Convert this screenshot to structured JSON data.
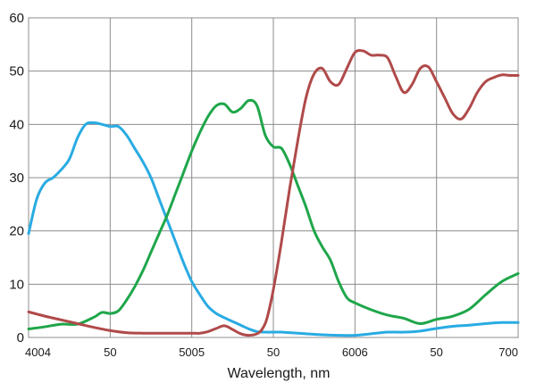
{
  "chart_data": {
    "type": "line",
    "title": "",
    "xlabel": "Wavelength, nm",
    "ylabel": "",
    "xlim": [
      400,
      700
    ],
    "ylim": [
      0,
      60
    ],
    "grid": true,
    "legend": "none",
    "x_ticks": [
      {
        "value": 400,
        "label": "4004"
      },
      {
        "value": 450,
        "label": "50"
      },
      {
        "value": 500,
        "label": "5005"
      },
      {
        "value": 550,
        "label": "50"
      },
      {
        "value": 600,
        "label": "6006"
      },
      {
        "value": 650,
        "label": "50"
      },
      {
        "value": 700,
        "label": "700"
      }
    ],
    "y_ticks": [
      0,
      10,
      20,
      30,
      40,
      50,
      60
    ],
    "series": [
      {
        "color": "#29abe2",
        "x": [
          400,
          405,
          410,
          415,
          420,
          425,
          430,
          435,
          440,
          445,
          450,
          455,
          460,
          465,
          470,
          475,
          480,
          485,
          490,
          495,
          500,
          505,
          510,
          515,
          520,
          525,
          530,
          535,
          540,
          545,
          550,
          555,
          560,
          570,
          580,
          590,
          600,
          610,
          620,
          630,
          640,
          650,
          660,
          670,
          680,
          690,
          700
        ],
        "y": [
          19.5,
          26,
          29,
          30,
          31.5,
          33.5,
          37.5,
          40,
          40.3,
          40,
          39.6,
          39.6,
          38,
          35.5,
          33,
          30,
          26,
          22,
          18,
          14,
          10.5,
          8,
          5.8,
          4.5,
          3.7,
          3,
          2.3,
          1.6,
          1.1,
          1,
          1,
          1,
          0.9,
          0.7,
          0.5,
          0.4,
          0.4,
          0.7,
          1,
          1,
          1.2,
          1.7,
          2.1,
          2.3,
          2.6,
          2.8,
          2.8
        ]
      },
      {
        "color": "#1fa64a",
        "x": [
          400,
          410,
          420,
          430,
          440,
          445,
          450,
          455,
          460,
          465,
          470,
          475,
          480,
          485,
          490,
          495,
          500,
          505,
          510,
          515,
          520,
          525,
          530,
          535,
          540,
          545,
          550,
          555,
          560,
          565,
          570,
          575,
          580,
          585,
          590,
          595,
          600,
          610,
          620,
          630,
          640,
          650,
          660,
          670,
          680,
          690,
          700
        ],
        "y": [
          1.6,
          2,
          2.5,
          2.5,
          3.8,
          4.7,
          4.5,
          5,
          7,
          9.5,
          12.5,
          16,
          19.5,
          23,
          27,
          31,
          35,
          38.5,
          41.5,
          43.5,
          43.8,
          42.3,
          43,
          44.5,
          43.5,
          38,
          35.8,
          35.5,
          32.5,
          28.5,
          24.5,
          20,
          17,
          14.5,
          10.5,
          7.5,
          6.5,
          5.2,
          4.2,
          3.6,
          2.6,
          3.4,
          4,
          5.3,
          8,
          10.5,
          12
        ]
      },
      {
        "color": "#b04a4a",
        "x": [
          400,
          410,
          420,
          430,
          440,
          450,
          460,
          470,
          480,
          490,
          500,
          505,
          510,
          515,
          520,
          525,
          530,
          535,
          540,
          543,
          546,
          550,
          555,
          560,
          565,
          570,
          575,
          580,
          585,
          590,
          595,
          600,
          605,
          610,
          615,
          620,
          625,
          630,
          635,
          640,
          645,
          650,
          655,
          660,
          665,
          670,
          675,
          680,
          685,
          690,
          695,
          700
        ],
        "y": [
          4.8,
          4,
          3.3,
          2.6,
          1.9,
          1.3,
          0.9,
          0.8,
          0.8,
          0.8,
          0.8,
          0.8,
          1.1,
          1.7,
          2.2,
          1.5,
          0.7,
          0.4,
          0.7,
          1.5,
          3.5,
          9,
          18,
          28,
          37,
          45,
          49.5,
          50.5,
          48,
          47.5,
          50.5,
          53.5,
          53.8,
          53,
          53,
          52.5,
          49,
          46,
          47.5,
          50.5,
          50.8,
          48,
          45,
          42,
          41,
          43,
          46,
          48,
          48.8,
          49.3,
          49.2,
          49.2
        ]
      }
    ]
  }
}
